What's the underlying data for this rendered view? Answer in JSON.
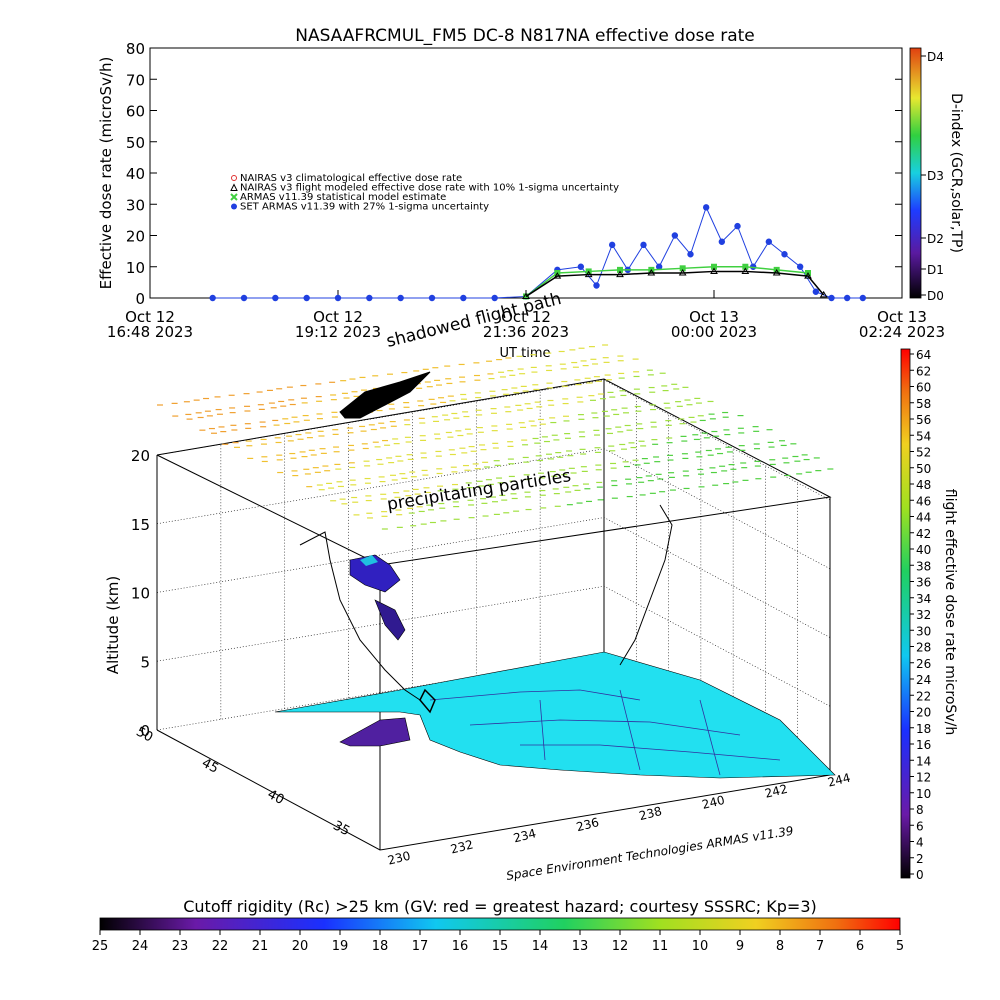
{
  "chart_data": [
    {
      "type": "scatter",
      "title": "NASAAFRCMUL_FM5 DC-8   N817NA effective dose rate",
      "ylabel": "Effective dose rate (microSv/h)",
      "xlabel": "UT time",
      "ylim": [
        0,
        80
      ],
      "yticks": [
        0,
        10,
        20,
        30,
        40,
        50,
        60,
        70,
        80
      ],
      "xticks": [
        {
          "top": "Oct 12",
          "bottom": "16:48 2023"
        },
        {
          "top": "Oct 12",
          "bottom": "19:12 2023"
        },
        {
          "top": "Oct 12",
          "bottom": "21:36 2023"
        },
        {
          "top": "Oct 13",
          "bottom": "00:00 2023"
        },
        {
          "top": "Oct 13",
          "bottom": "02:24 2023"
        }
      ],
      "x_unit": "hours after Oct 12 16:48 2023",
      "xlim": [
        0,
        9.6
      ],
      "legend": [
        "NAIRAS v3 climatological effective dose rate",
        "NAIRAS v3 flight modeled effective dose rate with 10% 1-sigma uncertainty",
        "ARMAS v11.39 statistical model estimate",
        "SET ARMAS v11.39 with 27% 1-sigma uncertainty"
      ],
      "legend_position": "upper-left",
      "series": [
        {
          "name": "SET ARMAS v11.39 with 27% 1-sigma uncertainty",
          "color": "#2040e0",
          "x": [
            0.8,
            1.2,
            1.6,
            2.0,
            2.4,
            2.8,
            3.2,
            3.6,
            4.0,
            4.4,
            4.8,
            5.2,
            5.5,
            5.7,
            5.9,
            6.1,
            6.3,
            6.5,
            6.7,
            6.9,
            7.1,
            7.3,
            7.5,
            7.7,
            7.9,
            8.1,
            8.3,
            8.5,
            8.7,
            8.9,
            9.1
          ],
          "y": [
            0,
            0,
            0,
            0,
            0,
            0,
            0,
            0,
            0,
            0,
            0.5,
            9,
            10,
            4,
            17,
            9,
            17,
            10,
            20,
            14,
            29,
            18,
            23,
            10,
            18,
            14,
            10,
            2,
            0,
            0,
            0
          ]
        },
        {
          "name": "ARMAS v11.39 statistical model estimate",
          "color": "#40d040",
          "x": [
            4.8,
            5.2,
            5.6,
            6.0,
            6.4,
            6.8,
            7.2,
            7.6,
            8.0,
            8.4
          ],
          "y": [
            0.5,
            8,
            8.5,
            9,
            9,
            9.5,
            10,
            10,
            9,
            8
          ]
        },
        {
          "name": "NAIRAS v3 flight modeled effective dose rate with 10% 1-sigma uncertainty",
          "color": "#000000",
          "x": [
            4.8,
            5.2,
            5.6,
            6.0,
            6.4,
            6.8,
            7.2,
            7.6,
            8.0,
            8.4,
            8.6
          ],
          "y": [
            0.5,
            7,
            7.5,
            7.5,
            8,
            8,
            8.5,
            8.5,
            8,
            7,
            1
          ]
        }
      ],
      "right_axis": {
        "label": "D-index (GCR,solar,TP)",
        "ticks": [
          "D0",
          "D1",
          "D2",
          "D3",
          "D4"
        ]
      }
    },
    {
      "type": "scatter",
      "subtype": "3d-flight-track",
      "zlabel": "Altitude (km)",
      "zticks": [
        0,
        5,
        10,
        15,
        20
      ],
      "y_ticks": [
        35,
        40,
        45,
        50
      ],
      "x_ticks": [
        230,
        232,
        234,
        236,
        238,
        240,
        242,
        244
      ],
      "annotations": [
        "shadowed flight path",
        "precipitating particles"
      ],
      "credit": "Space Environment Technologies ARMAS v11.39",
      "colorbar": {
        "label": "flight effective dose rate microSv/h",
        "ticks": [
          0,
          2,
          4,
          6,
          8,
          10,
          12,
          14,
          16,
          18,
          20,
          22,
          24,
          26,
          28,
          30,
          32,
          34,
          36,
          38,
          40,
          42,
          44,
          46,
          48,
          50,
          52,
          54,
          56,
          58,
          60,
          62,
          64
        ]
      }
    },
    {
      "type": "colorbar",
      "title": "Cutoff rigidity (Rc) >25 km (GV: red = greatest hazard; courtesy SSSRC; Kp=3)",
      "ticks": [
        25,
        24,
        23,
        22,
        21,
        20,
        19,
        18,
        17,
        16,
        15,
        14,
        13,
        12,
        11,
        10,
        9,
        8,
        7,
        6,
        5
      ]
    }
  ],
  "top_labels": {
    "title": "NASAAFRCMUL_FM5 DC-8   N817NA effective dose rate",
    "ylabel": "Effective dose rate (microSv/h)",
    "xlabel": "UT time",
    "right_label": "D-index (GCR,solar,TP)"
  },
  "mid_labels": {
    "zlabel": "Altitude (km)",
    "ann_shadow": "shadowed flight path",
    "ann_precip": "precipitating particles",
    "credit": "Space Environment Technologies ARMAS v11.39",
    "cbar_label": "flight effective dose rate microSv/h"
  },
  "bottom_labels": {
    "title": "Cutoff rigidity (Rc) >25 km (GV: red = greatest hazard; courtesy SSSRC; Kp=3)"
  }
}
